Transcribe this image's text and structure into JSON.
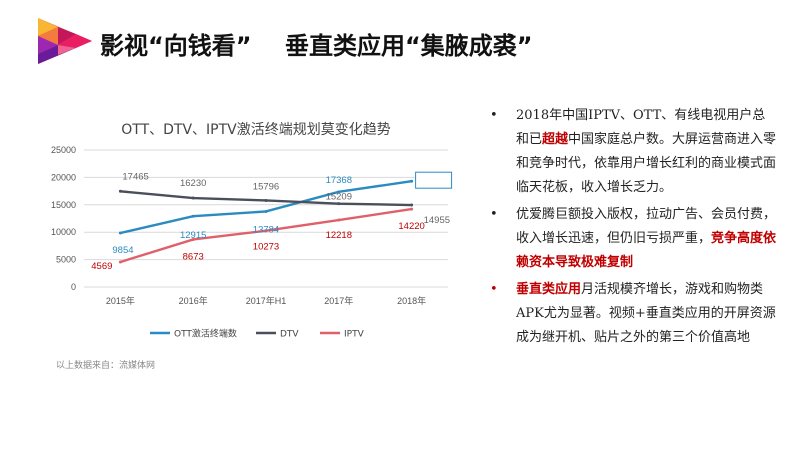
{
  "slide_title": "影视“向钱看”    垂直类应用“集腋成裘”",
  "source_note": "以上数据来自：流媒体网",
  "colors": {
    "ott": "#2b8bc0",
    "dtv": "#4a4f5c",
    "iptv": "#e0606a",
    "highlight": "#c00000"
  },
  "bullets": [
    {
      "parts": [
        {
          "text": "2018年中国IPTV、OTT、有线电视用户总和已",
          "style": "normal"
        },
        {
          "text": "超越",
          "style": "red"
        },
        {
          "text": "中国家庭总户数。大屏运营商进入零和竞争时代，依靠用户增长红利的商业模式面临天花板，收入增长乏力。",
          "style": "normal"
        }
      ]
    },
    {
      "parts": [
        {
          "text": "优爱腾巨额投入版权，拉动广告、会员付费，收入增长迅速，但仍旧亏损严重，",
          "style": "normal"
        },
        {
          "text": "竞争高度依赖资本导致极难复制",
          "style": "red"
        }
      ]
    },
    {
      "red_marker": true,
      "parts": [
        {
          "text": "垂直类应用",
          "style": "red"
        },
        {
          "text": "月活规模齐增长，游戏和购物类APK尤为显著。视频+垂直类应用的开屏资源成为继开机、贴片之外的第三个价值高地",
          "style": "normal"
        }
      ]
    }
  ],
  "chart_data": {
    "type": "line",
    "title": "OTT、DTV、IPTV激活终端规划莫变化趋势",
    "categories": [
      "2015年",
      "2016年",
      "2017年H1",
      "2017年",
      "2018年"
    ],
    "ylim": [
      0,
      25000
    ],
    "yticks": [
      0,
      5000,
      10000,
      15000,
      20000,
      25000
    ],
    "grid": true,
    "legend": "bottom",
    "series": [
      {
        "name": "OTT激活终端数",
        "values": [
          9854,
          12915,
          13784,
          17368,
          19307
        ],
        "color": "#2b8bc0"
      },
      {
        "name": "DTV",
        "values": [
          17465,
          16230,
          15796,
          15209,
          14955
        ],
        "color": "#4a4f5c"
      },
      {
        "name": "IPTV",
        "values": [
          4569,
          8673,
          10273,
          12218,
          14220
        ],
        "color": "#e0606a"
      }
    ]
  }
}
